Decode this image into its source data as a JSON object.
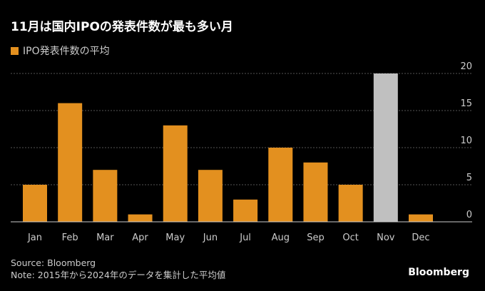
{
  "chart_data": {
    "type": "bar",
    "title": "11月は国内IPOの発表件数が最も多い月",
    "legend": [
      {
        "name": "IPO発表件数の平均",
        "color": "#e3901f"
      }
    ],
    "categories": [
      "Jan",
      "Feb",
      "Mar",
      "Apr",
      "May",
      "Jun",
      "Jul",
      "Aug",
      "Sep",
      "Oct",
      "Nov",
      "Dec"
    ],
    "series": [
      {
        "name": "IPO発表件数の平均",
        "values": [
          5,
          16,
          7,
          1,
          13,
          7,
          3,
          10,
          8,
          5,
          20,
          1
        ]
      }
    ],
    "colors": [
      "#e3901f",
      "#e3901f",
      "#e3901f",
      "#e3901f",
      "#e3901f",
      "#e3901f",
      "#e3901f",
      "#e3901f",
      "#e3901f",
      "#e3901f",
      "#c0c0c0",
      "#e3901f"
    ],
    "ylim": [
      0,
      20
    ],
    "yticks": [
      0,
      5,
      10,
      15,
      20
    ],
    "y_axis_position": "right",
    "grid": true,
    "legend_position": "top-left"
  },
  "footer": {
    "source": "Source: Bloomberg",
    "note": "Note: 2015年から2024年のデータを集計した平均値"
  },
  "logo": "Bloomberg"
}
